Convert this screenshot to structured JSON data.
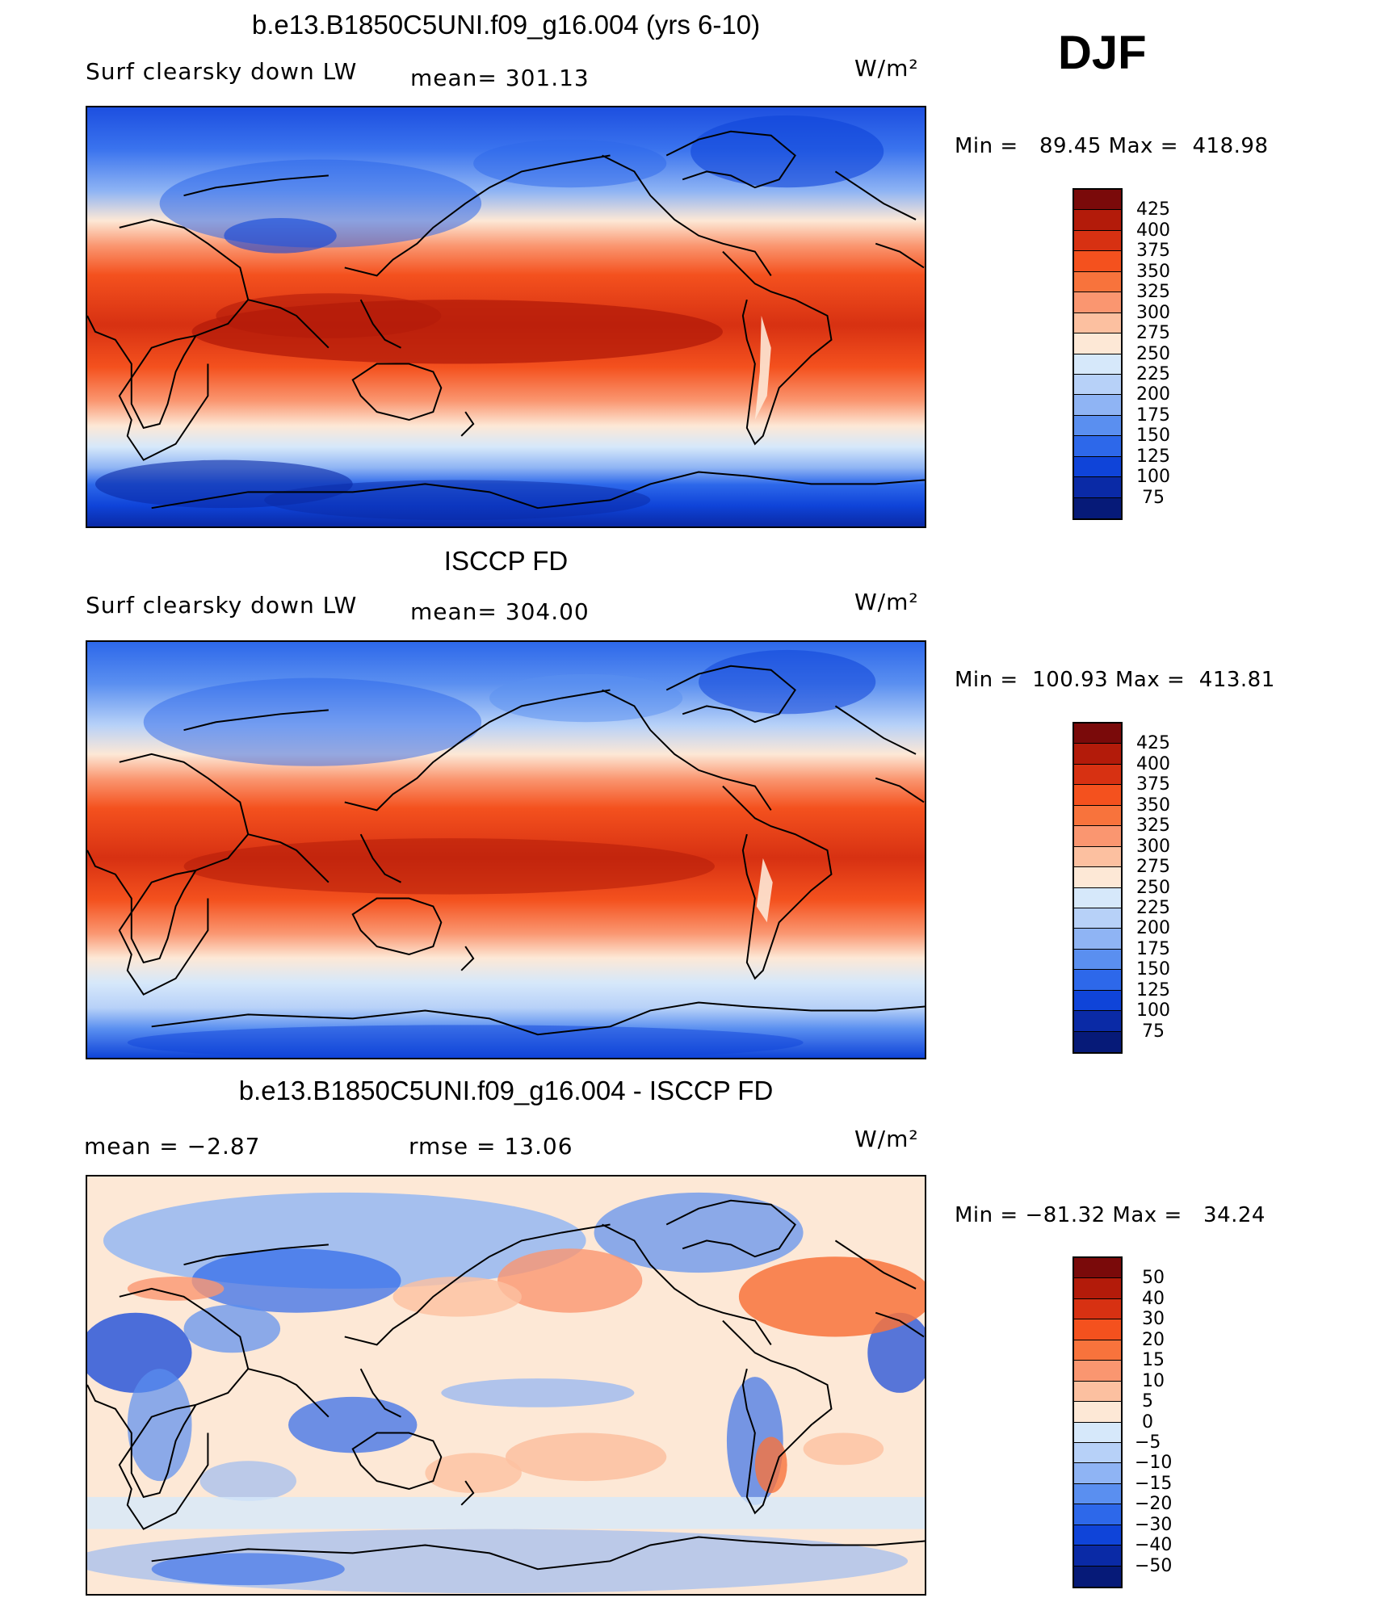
{
  "season": "DJF",
  "panels": [
    {
      "title": "b.e13.B1850C5UNI.f09_g16.004 (yrs 6-10)",
      "left_label": "Surf clearsky down LW",
      "center_label": "mean=  301.13",
      "units": "W/m²",
      "minmax": "Min =   89.45 Max =  418.98",
      "colorbar_ticks": [
        "425",
        "400",
        "375",
        "350",
        "325",
        "300",
        "275",
        "250",
        "225",
        "200",
        "175",
        "150",
        "125",
        "100",
        "75"
      ]
    },
    {
      "title": "ISCCP FD",
      "left_label": "Surf clearsky down LW",
      "center_label": "mean=  304.00",
      "units": "W/m²",
      "minmax": "Min =  100.93 Max =  413.81",
      "colorbar_ticks": [
        "425",
        "400",
        "375",
        "350",
        "325",
        "300",
        "275",
        "250",
        "225",
        "200",
        "175",
        "150",
        "125",
        "100",
        "75"
      ]
    },
    {
      "title": "b.e13.B1850C5UNI.f09_g16.004 - ISCCP FD",
      "left_label": "mean =    −2.87",
      "center_label": "rmse =    13.06",
      "units": "W/m²",
      "minmax": "Min = −81.32 Max =   34.24",
      "colorbar_ticks": [
        "50",
        "40",
        "30",
        "20",
        "15",
        "10",
        "5",
        "0",
        "−5",
        "−10",
        "−15",
        "−20",
        "−30",
        "−40",
        "−50"
      ]
    }
  ],
  "colors": {
    "cbar_16": [
      "#7a0a0a",
      "#b31b0a",
      "#d73112",
      "#f4511e",
      "#f8733c",
      "#fa9670",
      "#fcc0a0",
      "#fde8d6",
      "#d6e8fa",
      "#b7d1f8",
      "#8fb4f4",
      "#5a8ff0",
      "#2d68ea",
      "#0f44d9",
      "#0a2aa6",
      "#061a78"
    ]
  },
  "chart_data": [
    {
      "type": "heatmap",
      "title": "b.e13.B1850C5UNI.f09_g16.004 (yrs 6-10)",
      "variable": "Surf clearsky down LW",
      "units": "W/m2",
      "mean": 301.13,
      "min": 89.45,
      "max": 418.98,
      "levels": [
        75,
        100,
        125,
        150,
        175,
        200,
        225,
        250,
        275,
        300,
        325,
        350,
        375,
        400,
        425
      ],
      "zonal_pattern_approx": [
        {
          "lat": 80,
          "value": 150
        },
        {
          "lat": 60,
          "value": 210
        },
        {
          "lat": 40,
          "value": 290
        },
        {
          "lat": 20,
          "value": 370
        },
        {
          "lat": 0,
          "value": 400
        },
        {
          "lat": -20,
          "value": 375
        },
        {
          "lat": -40,
          "value": 290
        },
        {
          "lat": -60,
          "value": 240
        },
        {
          "lat": -80,
          "value": 115
        }
      ]
    },
    {
      "type": "heatmap",
      "title": "ISCCP FD",
      "variable": "Surf clearsky down LW",
      "units": "W/m2",
      "mean": 304.0,
      "min": 100.93,
      "max": 413.81,
      "levels": [
        75,
        100,
        125,
        150,
        175,
        200,
        225,
        250,
        275,
        300,
        325,
        350,
        375,
        400,
        425
      ],
      "zonal_pattern_approx": [
        {
          "lat": 80,
          "value": 160
        },
        {
          "lat": 60,
          "value": 215
        },
        {
          "lat": 40,
          "value": 285
        },
        {
          "lat": 20,
          "value": 365
        },
        {
          "lat": 0,
          "value": 395
        },
        {
          "lat": -20,
          "value": 370
        },
        {
          "lat": -40,
          "value": 300
        },
        {
          "lat": -60,
          "value": 250
        },
        {
          "lat": -80,
          "value": 140
        }
      ]
    },
    {
      "type": "heatmap",
      "title": "b.e13.B1850C5UNI.f09_g16.004 - ISCCP FD",
      "units": "W/m2",
      "mean": -2.87,
      "rmse": 13.06,
      "min": -81.32,
      "max": 34.24,
      "levels": [
        -50,
        -40,
        -30,
        -20,
        -15,
        -10,
        -5,
        0,
        5,
        10,
        15,
        20,
        30,
        40,
        50
      ]
    }
  ]
}
